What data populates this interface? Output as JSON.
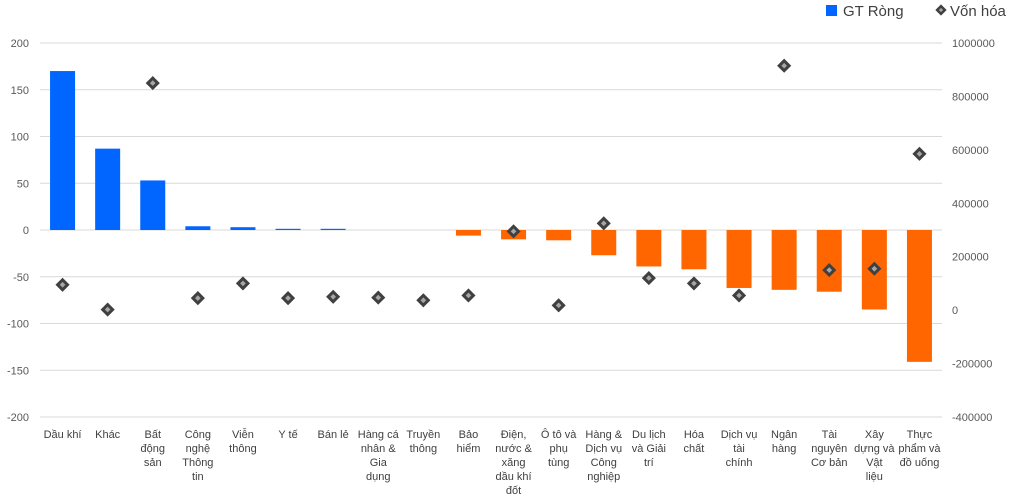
{
  "chart_data": {
    "type": "bar",
    "title": "",
    "xlabel": "",
    "ylabel": "",
    "categories": [
      "Dầu khí",
      "Khác",
      "Bất động sản",
      "Công nghệ Thông tin",
      "Viễn thông",
      "Y tế",
      "Bán lẻ",
      "Hàng cá nhân & Gia dụng",
      "Truyền thông",
      "Bảo hiểm",
      "Điện, nước & xăng dầu khí đốt",
      "Ô tô và phụ tùng",
      "Hàng & Dịch vụ Công nghiệp",
      "Du lịch và Giải trí",
      "Hóa chất",
      "Dịch vụ tài chính",
      "Ngân hàng",
      "Tài nguyên Cơ bản",
      "Xây dựng và Vật liệu",
      "Thực phẩm và đồ uống"
    ],
    "series": [
      {
        "name": "GT Ròng",
        "type": "bar",
        "axis": "left",
        "values": [
          170,
          87,
          53,
          4,
          3,
          1,
          1,
          0,
          0,
          -6,
          -10,
          -11,
          -27,
          -39,
          -42,
          -62,
          -64,
          -66,
          -85,
          -141
        ]
      },
      {
        "name": "Vốn hóa",
        "type": "scatter",
        "axis": "right",
        "values": [
          95000,
          2000,
          850000,
          45000,
          100000,
          45000,
          50000,
          47000,
          37000,
          55000,
          295000,
          18000,
          325000,
          120000,
          100000,
          55000,
          915000,
          150000,
          155000,
          585000
        ]
      }
    ],
    "y_left": {
      "ylim": [
        -200,
        200
      ],
      "ticks": [
        "200",
        "150",
        "100",
        "50",
        "0",
        "-50",
        "-100",
        "-150",
        "-200"
      ]
    },
    "y_right": {
      "ylim": [
        -400000,
        1000000
      ],
      "ticks": [
        "1000000",
        "800000",
        "600000",
        "400000",
        "200000",
        "0",
        "-200000",
        "-400000"
      ]
    },
    "grid": true,
    "legend": "top-right",
    "colors": {
      "positive": "#0066FF",
      "negative": "#FF6600",
      "marker": "#404040",
      "marker_center": "#a6a6a6",
      "grid": "#d9d9d9"
    }
  }
}
